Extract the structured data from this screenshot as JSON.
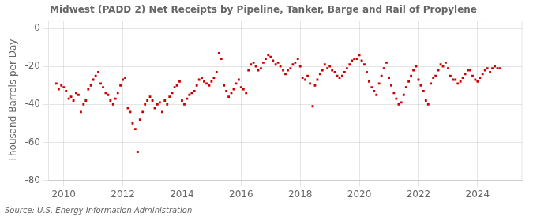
{
  "chart_data": {
    "type": "scatter",
    "title": "Midwest (PADD 2) Net Receipts by Pipeline, Tanker, Barge and Rail of Propylene",
    "ylabel": "Thousand Barrels per Day",
    "annotation": "Source: U.S. Energy Information Administration",
    "color": "#cc0000",
    "marker": "square",
    "grid": true,
    "xlim": [
      2009.5,
      2025.5
    ],
    "xticks": [
      2010,
      2012,
      2014,
      2016,
      2018,
      2020,
      2022,
      2024
    ],
    "ylim": [
      -80,
      4
    ],
    "yticks": [
      0,
      -20,
      -40,
      -60,
      -80
    ],
    "x": [
      2009.75,
      2009.83,
      2009.92,
      2010.0,
      2010.08,
      2010.17,
      2010.25,
      2010.33,
      2010.42,
      2010.5,
      2010.58,
      2010.67,
      2010.75,
      2010.83,
      2010.92,
      2011.0,
      2011.08,
      2011.17,
      2011.25,
      2011.33,
      2011.42,
      2011.5,
      2011.58,
      2011.67,
      2011.75,
      2011.83,
      2011.92,
      2012.0,
      2012.08,
      2012.17,
      2012.25,
      2012.33,
      2012.42,
      2012.5,
      2012.58,
      2012.67,
      2012.75,
      2012.83,
      2012.92,
      2013.0,
      2013.08,
      2013.17,
      2013.25,
      2013.33,
      2013.42,
      2013.5,
      2013.58,
      2013.67,
      2013.75,
      2013.83,
      2013.92,
      2014.0,
      2014.08,
      2014.17,
      2014.25,
      2014.33,
      2014.42,
      2014.5,
      2014.58,
      2014.67,
      2014.75,
      2014.83,
      2014.92,
      2015.0,
      2015.08,
      2015.17,
      2015.25,
      2015.33,
      2015.42,
      2015.5,
      2015.58,
      2015.67,
      2015.75,
      2015.83,
      2015.92,
      2016.0,
      2016.08,
      2016.17,
      2016.25,
      2016.33,
      2016.42,
      2016.5,
      2016.58,
      2016.67,
      2016.75,
      2016.83,
      2016.92,
      2017.0,
      2017.08,
      2017.17,
      2017.25,
      2017.33,
      2017.42,
      2017.5,
      2017.58,
      2017.67,
      2017.75,
      2017.83,
      2017.92,
      2018.0,
      2018.08,
      2018.17,
      2018.25,
      2018.33,
      2018.42,
      2018.5,
      2018.58,
      2018.67,
      2018.75,
      2018.83,
      2018.92,
      2019.0,
      2019.08,
      2019.17,
      2019.25,
      2019.33,
      2019.42,
      2019.5,
      2019.58,
      2019.67,
      2019.75,
      2019.83,
      2019.92,
      2020.0,
      2020.08,
      2020.17,
      2020.25,
      2020.33,
      2020.42,
      2020.5,
      2020.58,
      2020.67,
      2020.75,
      2020.83,
      2020.92,
      2021.0,
      2021.08,
      2021.17,
      2021.25,
      2021.33,
      2021.42,
      2021.5,
      2021.58,
      2021.67,
      2021.75,
      2021.83,
      2021.92,
      2022.0,
      2022.08,
      2022.17,
      2022.25,
      2022.33,
      2022.42,
      2022.5,
      2022.58,
      2022.67,
      2022.75,
      2022.83,
      2022.92,
      2023.0,
      2023.08,
      2023.17,
      2023.25,
      2023.33,
      2023.42,
      2023.5,
      2023.58,
      2023.67,
      2023.75,
      2023.83,
      2023.92,
      2024.0,
      2024.08,
      2024.17,
      2024.25,
      2024.33,
      2024.42,
      2024.5,
      2024.58,
      2024.67,
      2024.75
    ],
    "values": [
      -29,
      -32,
      -30,
      -31,
      -33,
      -37,
      -36,
      -38,
      -34,
      -35,
      -44,
      -40,
      -38,
      -32,
      -30,
      -27,
      -25,
      -23,
      -29,
      -31,
      -34,
      -35,
      -38,
      -40,
      -37,
      -34,
      -30,
      -27,
      -26,
      -42,
      -44,
      -50,
      -53,
      -65,
      -48,
      -44,
      -40,
      -38,
      -36,
      -38,
      -42,
      -40,
      -39,
      -44,
      -38,
      -40,
      -36,
      -34,
      -31,
      -30,
      -28,
      -38,
      -40,
      -37,
      -35,
      -34,
      -33,
      -30,
      -27,
      -26,
      -28,
      -29,
      -30,
      -28,
      -26,
      -23,
      -13,
      -16,
      -30,
      -33,
      -36,
      -34,
      -32,
      -29,
      -27,
      -31,
      -32,
      -34,
      -22,
      -19,
      -18,
      -20,
      -22,
      -21,
      -18,
      -16,
      -14,
      -15,
      -17,
      -19,
      -18,
      -20,
      -22,
      -24,
      -22,
      -21,
      -19,
      -18,
      -16,
      -20,
      -26,
      -27,
      -25,
      -29,
      -41,
      -30,
      -27,
      -24,
      -22,
      -19,
      -21,
      -20,
      -22,
      -23,
      -25,
      -26,
      -25,
      -23,
      -21,
      -19,
      -17,
      -16,
      -16,
      -14,
      -17,
      -19,
      -23,
      -28,
      -31,
      -33,
      -35,
      -29,
      -25,
      -21,
      -18,
      -26,
      -30,
      -34,
      -37,
      -40,
      -39,
      -35,
      -31,
      -28,
      -25,
      -22,
      -20,
      -27,
      -30,
      -33,
      -38,
      -40,
      -29,
      -26,
      -25,
      -22,
      -19,
      -20,
      -18,
      -21,
      -25,
      -27,
      -27,
      -29,
      -28,
      -26,
      -24,
      -22,
      -22,
      -25,
      -27,
      -28,
      -26,
      -24,
      -22,
      -21,
      -23,
      -21,
      -20,
      -21,
      -21
    ]
  }
}
